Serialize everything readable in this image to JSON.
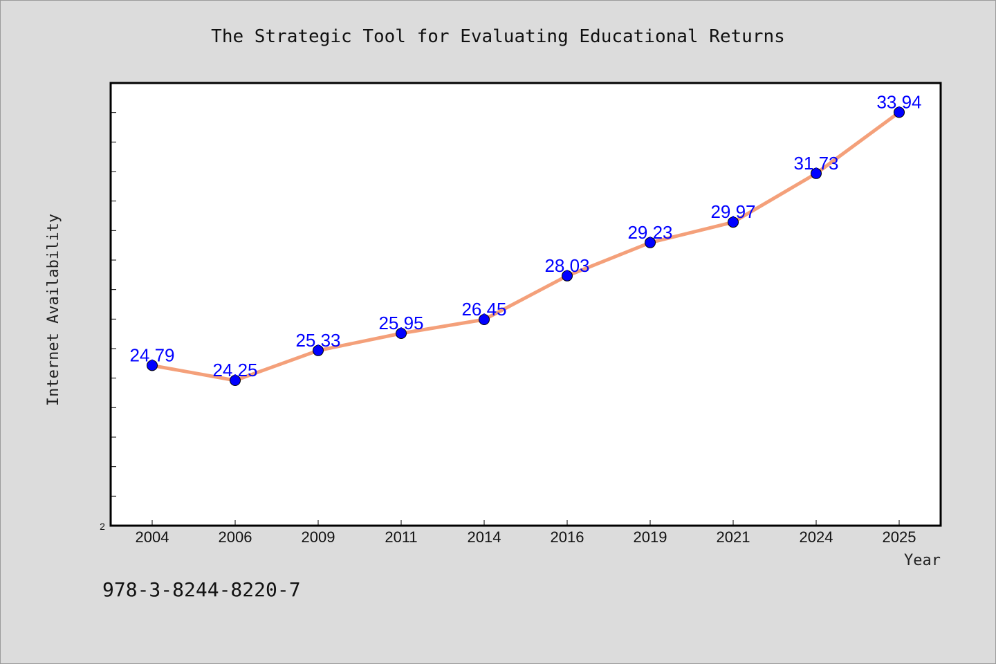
{
  "chart_data": {
    "type": "line",
    "title": "The Strategic Tool for Evaluating Educational Returns",
    "xlabel": "Year",
    "ylabel": "Internet Availability",
    "categories": [
      "2004",
      "2006",
      "2009",
      "2011",
      "2014",
      "2016",
      "2019",
      "2021",
      "2024",
      "2025"
    ],
    "series": [
      {
        "values": [
          24.79,
          24.25,
          25.33,
          25.95,
          26.45,
          28.03,
          29.23,
          29.97,
          31.73,
          33.94
        ]
      }
    ],
    "data_labels": [
      "24.79",
      "24.25",
      "25.33",
      "25.95",
      "26.45",
      "28.03",
      "29.23",
      "29.97",
      "31.73",
      "33.94"
    ],
    "y_tick_labels": [
      "2"
    ],
    "ylim": [
      19,
      35
    ],
    "grid": false,
    "line_color": "#f4a07a",
    "marker_color": "#0000ff",
    "label_color": "#0000ff",
    "plot_background": "#ffffff",
    "page_background": "#dcdcdc"
  },
  "footer": {
    "isbn": "978-3-8244-8220-7"
  }
}
